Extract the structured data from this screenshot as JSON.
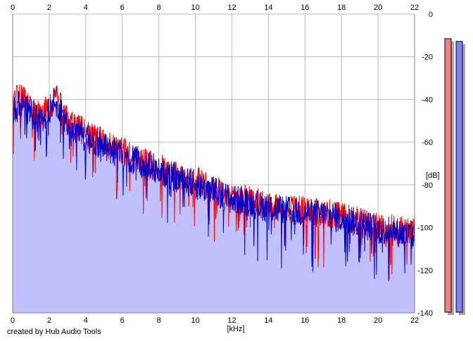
{
  "chart_data": {
    "type": "area",
    "xlabel": "[kHz]",
    "ylabel": "[dB]",
    "xlim": [
      0,
      22
    ],
    "ylim": [
      -140,
      0
    ],
    "x_ticks": [
      0,
      2,
      4,
      6,
      8,
      10,
      12,
      14,
      16,
      18,
      20,
      22
    ],
    "x_tick_labels": [
      "0",
      "2",
      "4",
      "6",
      "8",
      "10",
      "12",
      "14",
      "16",
      "18",
      "20",
      "22"
    ],
    "y_ticks": [
      0,
      -20,
      -40,
      -60,
      -80,
      -100,
      -120,
      -140
    ],
    "y_tick_labels": [
      "0",
      "-20",
      "-40",
      "-60",
      "-80",
      "-100",
      "-120",
      "-140"
    ],
    "grid": true,
    "fill_color": "#c0c0ff",
    "series": [
      {
        "color": "#ff0000",
        "envelope": {
          "x": [
            0,
            0.3,
            0.8,
            1.5,
            2,
            2.3,
            3,
            4,
            5,
            6,
            7,
            8,
            9,
            10,
            11,
            12,
            13,
            14,
            15,
            16,
            17,
            18,
            19,
            20,
            21,
            22
          ],
          "y": [
            -45,
            -38,
            -43,
            -48,
            -44,
            -38,
            -50,
            -56,
            -60,
            -64,
            -69,
            -72,
            -76,
            -78,
            -82,
            -86,
            -87,
            -90,
            -91,
            -92,
            -93,
            -95,
            -97,
            -100,
            -101,
            -103
          ]
        }
      },
      {
        "color": "#0000cc",
        "envelope": {
          "x": [
            0,
            0.3,
            0.8,
            1.5,
            2,
            2.3,
            3,
            4,
            5,
            6,
            7,
            8,
            9,
            10,
            11,
            12,
            13,
            14,
            15,
            16,
            17,
            18,
            19,
            20,
            21,
            22
          ],
          "y": [
            -47,
            -40,
            -45,
            -50,
            -46,
            -40,
            -52,
            -58,
            -62,
            -66,
            -70,
            -73,
            -77,
            -80,
            -83,
            -87,
            -88,
            -91,
            -92,
            -93,
            -94,
            -96,
            -98,
            -101,
            -102,
            -104
          ]
        }
      }
    ]
  },
  "meters": [
    {
      "color": "#f08080",
      "level": 1.0
    },
    {
      "color": "#8080ff",
      "level": 0.99
    }
  ],
  "footer_text": "created by Hub Audio Tools"
}
